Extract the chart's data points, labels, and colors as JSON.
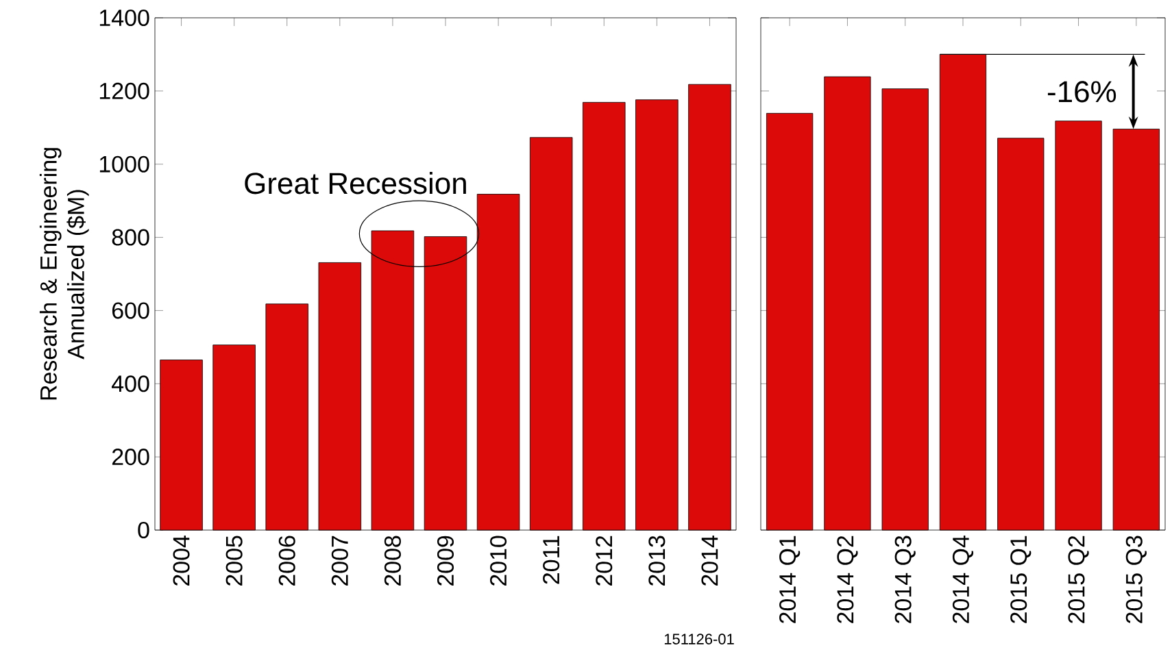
{
  "chart_data": [
    {
      "type": "bar",
      "ylabel": "Research & Engineering Annualized ($M)",
      "categories": [
        "2004",
        "2005",
        "2006",
        "2007",
        "2008",
        "2009",
        "2010",
        "2011",
        "2012",
        "2013",
        "2014"
      ],
      "values": [
        465,
        506,
        618,
        731,
        818,
        802,
        918,
        1073,
        1169,
        1176,
        1218
      ],
      "color": "#dd0a0a",
      "ylim": [
        0,
        1400
      ],
      "yticks": [
        0,
        200,
        400,
        600,
        800,
        1000,
        1200,
        1400
      ],
      "grid": false,
      "annotations": [
        "Great Recession",
        "151126-01"
      ]
    },
    {
      "type": "bar",
      "categories": [
        "2014 Q1",
        "2014 Q2",
        "2014 Q3",
        "2014 Q4",
        "2015 Q1",
        "2015 Q2",
        "2015 Q3"
      ],
      "values": [
        1139,
        1239,
        1206,
        1300,
        1071,
        1118,
        1096
      ],
      "color": "#dd0a0a",
      "ylim": [
        0,
        1400
      ],
      "yticks": [
        0,
        200,
        400,
        600,
        800,
        1000,
        1200,
        1400
      ],
      "grid": false,
      "tick_labels": "x",
      "ref_lines": [
        {
          "axis": "y",
          "value": 1300
        }
      ],
      "annotations": [
        "-16%"
      ]
    }
  ]
}
